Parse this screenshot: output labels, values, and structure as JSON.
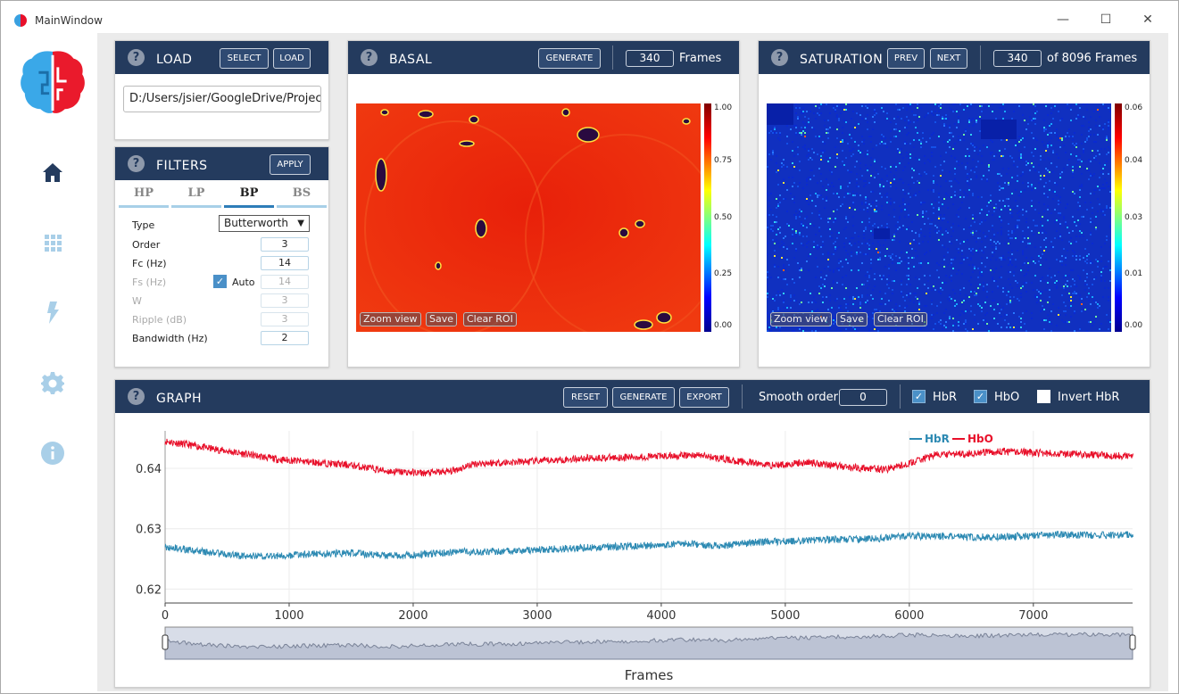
{
  "window": {
    "title": "MainWindow",
    "minimize": "—",
    "maximize": "☐",
    "close": "✕"
  },
  "colors": {
    "header": "#243b5e",
    "hbr": "#2d8ab3",
    "hbo": "#e8102a",
    "accent": "#4a90c8"
  },
  "sidebar": {
    "icons": [
      "home-icon",
      "grid-icon",
      "lightning-icon",
      "gear-icon",
      "info-icon"
    ]
  },
  "load": {
    "title": "LOAD",
    "select_label": "SELECT",
    "load_label": "LOAD",
    "path": "D:/Users/jsier/GoogleDrive/Projects"
  },
  "filters": {
    "title": "FILTERS",
    "apply_label": "APPLY",
    "tabs": [
      "HP",
      "LP",
      "BP",
      "BS"
    ],
    "active_tab": "BP",
    "type_label": "Type",
    "type_value": "Butterworth",
    "order_label": "Order",
    "order_value": "3",
    "fc_label": "Fc (Hz)",
    "fc_value": "14",
    "fs_label": "Fs (Hz)",
    "fs_value": "14",
    "auto_label": "Auto",
    "w_label": "W",
    "w_value": "3",
    "ripple_label": "Ripple (dB)",
    "ripple_value": "3",
    "bandwidth_label": "Bandwidth (Hz)",
    "bandwidth_value": "2"
  },
  "basal": {
    "title": "BASAL",
    "generate_label": "GENERATE",
    "frames_value": "340",
    "frames_label": "Frames",
    "zoom_label": "Zoom view",
    "save_label": "Save",
    "clear_label": "Clear ROI",
    "cbar_ticks": [
      "1.00",
      "0.75",
      "0.50",
      "0.25",
      "0.00"
    ]
  },
  "saturation": {
    "title": "SATURATION",
    "prev_label": "PREV",
    "next_label": "NEXT",
    "frame_value": "340",
    "of_label": "of 8096 Frames",
    "zoom_label": "Zoom view",
    "save_label": "Save",
    "clear_label": "Clear ROI",
    "cbar_ticks": [
      "0.06",
      "0.04",
      "0.03",
      "0.01",
      "0.00"
    ]
  },
  "graph": {
    "title": "GRAPH",
    "reset_label": "RESET",
    "generate_label": "GENERATE",
    "export_label": "EXPORT",
    "smooth_label": "Smooth order",
    "smooth_value": "0",
    "hbr_label": "HbR",
    "hbo_label": "HbO",
    "invert_label": "Invert HbR",
    "hbr_checked": true,
    "hbo_checked": true,
    "invert_checked": false
  },
  "chart_data": {
    "type": "line",
    "xlabel": "Frames",
    "ylabel": "",
    "xlim": [
      0,
      7800
    ],
    "ylim": [
      0.6177,
      0.6462
    ],
    "xticks": [
      "0",
      "1000",
      "2000",
      "3000",
      "4000",
      "5000",
      "6000",
      "7000"
    ],
    "xtick_values": [
      0,
      1000,
      2000,
      3000,
      4000,
      5000,
      6000,
      7000
    ],
    "yticks": [
      "0.64",
      "0.63",
      "0.62"
    ],
    "ytick_values": [
      0.64,
      0.63,
      0.62
    ],
    "legend": [
      "HbR",
      "HbO"
    ],
    "legend_position": "top-right",
    "series": [
      {
        "name": "HbO",
        "color": "#e8102a",
        "x": [
          0,
          300,
          600,
          900,
          1200,
          1500,
          1800,
          2100,
          2300,
          2500,
          2800,
          3100,
          3400,
          3700,
          4000,
          4300,
          4600,
          4900,
          5200,
          5500,
          5800,
          6000,
          6200,
          6500,
          6800,
          7100,
          7400,
          7800
        ],
        "y": [
          0.6445,
          0.6435,
          0.6425,
          0.6415,
          0.641,
          0.6405,
          0.6395,
          0.6392,
          0.6395,
          0.6408,
          0.641,
          0.6413,
          0.6417,
          0.6418,
          0.642,
          0.6422,
          0.6412,
          0.6405,
          0.641,
          0.6402,
          0.6398,
          0.6408,
          0.6422,
          0.6425,
          0.6428,
          0.6425,
          0.6423,
          0.642
        ]
      },
      {
        "name": "HbR",
        "color": "#2d8ab3",
        "x": [
          0,
          300,
          600,
          900,
          1200,
          1500,
          1800,
          2100,
          2400,
          2700,
          3000,
          3300,
          3600,
          3900,
          4200,
          4500,
          4800,
          5100,
          5400,
          5700,
          6000,
          6300,
          6600,
          6900,
          7200,
          7500,
          7800
        ],
        "y": [
          0.627,
          0.6262,
          0.6255,
          0.6255,
          0.6258,
          0.626,
          0.6255,
          0.6258,
          0.6262,
          0.6262,
          0.6265,
          0.6268,
          0.627,
          0.6272,
          0.6275,
          0.6272,
          0.6278,
          0.628,
          0.6282,
          0.6283,
          0.6288,
          0.6287,
          0.6286,
          0.6288,
          0.629,
          0.6289,
          0.629
        ]
      }
    ],
    "grid": true
  }
}
